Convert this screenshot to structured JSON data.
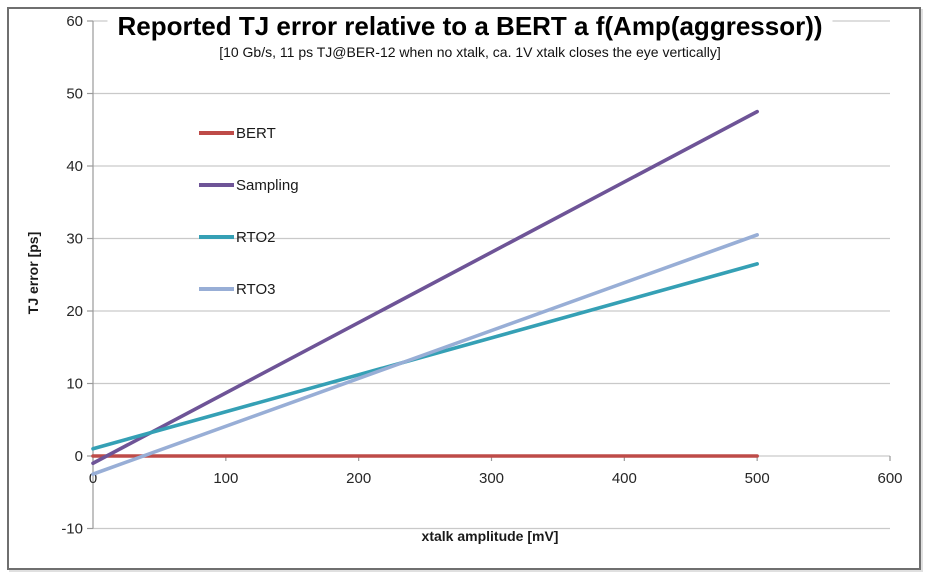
{
  "chart_data": {
    "type": "line",
    "title": "Reported TJ error relative to a BERT a f(Amp(aggressor))",
    "subtitle": "[10 Gb/s, 11 ps TJ@BER-12 when no xtalk, ca. 1V xtalk closes the eye vertically]",
    "xlabel": "xtalk amplitude [mV]",
    "ylabel": "TJ error [ps]",
    "xlim": [
      0,
      600
    ],
    "ylim": [
      -10,
      60
    ],
    "xticks": [
      0,
      100,
      200,
      300,
      400,
      500,
      600
    ],
    "yticks": [
      -10,
      0,
      10,
      20,
      30,
      40,
      50,
      60
    ],
    "grid": "horizontal-only",
    "legend_position": "inside-upper-left",
    "colors": {
      "grid": "#c9c9c9",
      "axis": "#9a9a9a",
      "tick_text": "#262626"
    },
    "series": [
      {
        "name": "BERT",
        "color": "#be4b48",
        "points": [
          [
            0,
            0
          ],
          [
            500,
            0
          ]
        ]
      },
      {
        "name": "Sampling",
        "color": "#6e5497",
        "points": [
          [
            0,
            -1
          ],
          [
            500,
            47.5
          ]
        ]
      },
      {
        "name": "RTO2",
        "color": "#35a0b5",
        "points": [
          [
            0,
            1
          ],
          [
            500,
            26.5
          ]
        ]
      },
      {
        "name": "RTO3",
        "color": "#98aed6",
        "points": [
          [
            0,
            -2.5
          ],
          [
            500,
            30.5
          ]
        ]
      }
    ]
  }
}
